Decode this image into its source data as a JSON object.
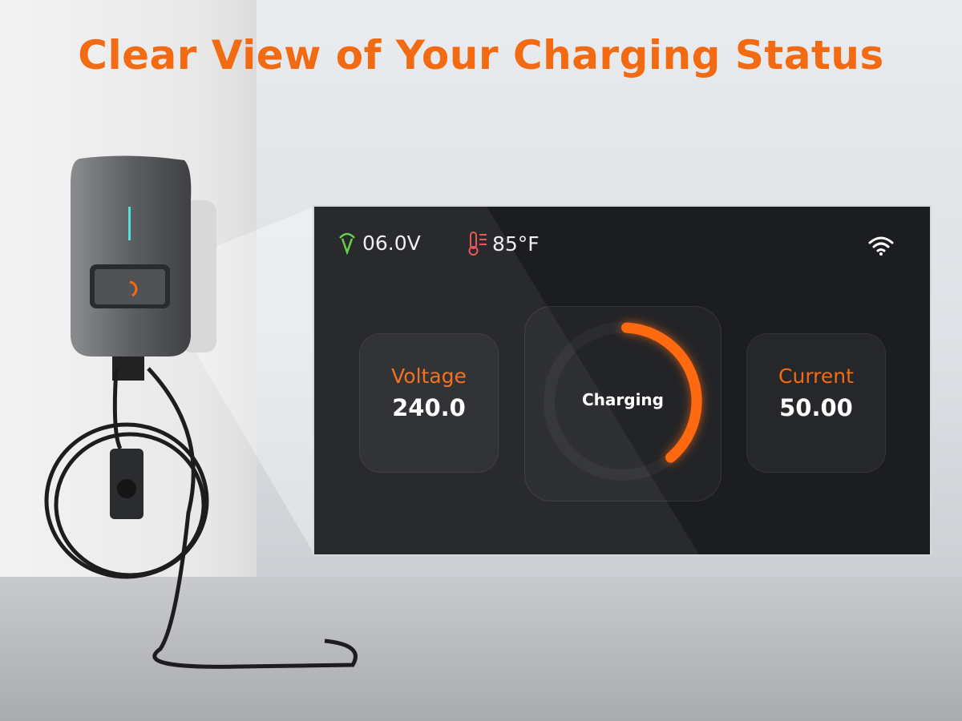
{
  "headline": "Clear View of Your Charging Status",
  "colors": {
    "accent": "#f26b12",
    "screen_bg": "#1c1d20",
    "voltage_icon": "#5fcf3e",
    "temp_icon": "#e2514b"
  },
  "display": {
    "status_bar": {
      "grid_voltage": "06.0V",
      "grid_icon": "v-signal-icon",
      "temperature": "85°F",
      "temp_icon": "thermometer-icon",
      "wifi_icon": "wifi-icon"
    },
    "voltage": {
      "label": "Voltage",
      "value": "240.0"
    },
    "status": {
      "label": "Charging",
      "progress_percent": 38
    },
    "current": {
      "label": "Current",
      "value": "50.00"
    }
  }
}
